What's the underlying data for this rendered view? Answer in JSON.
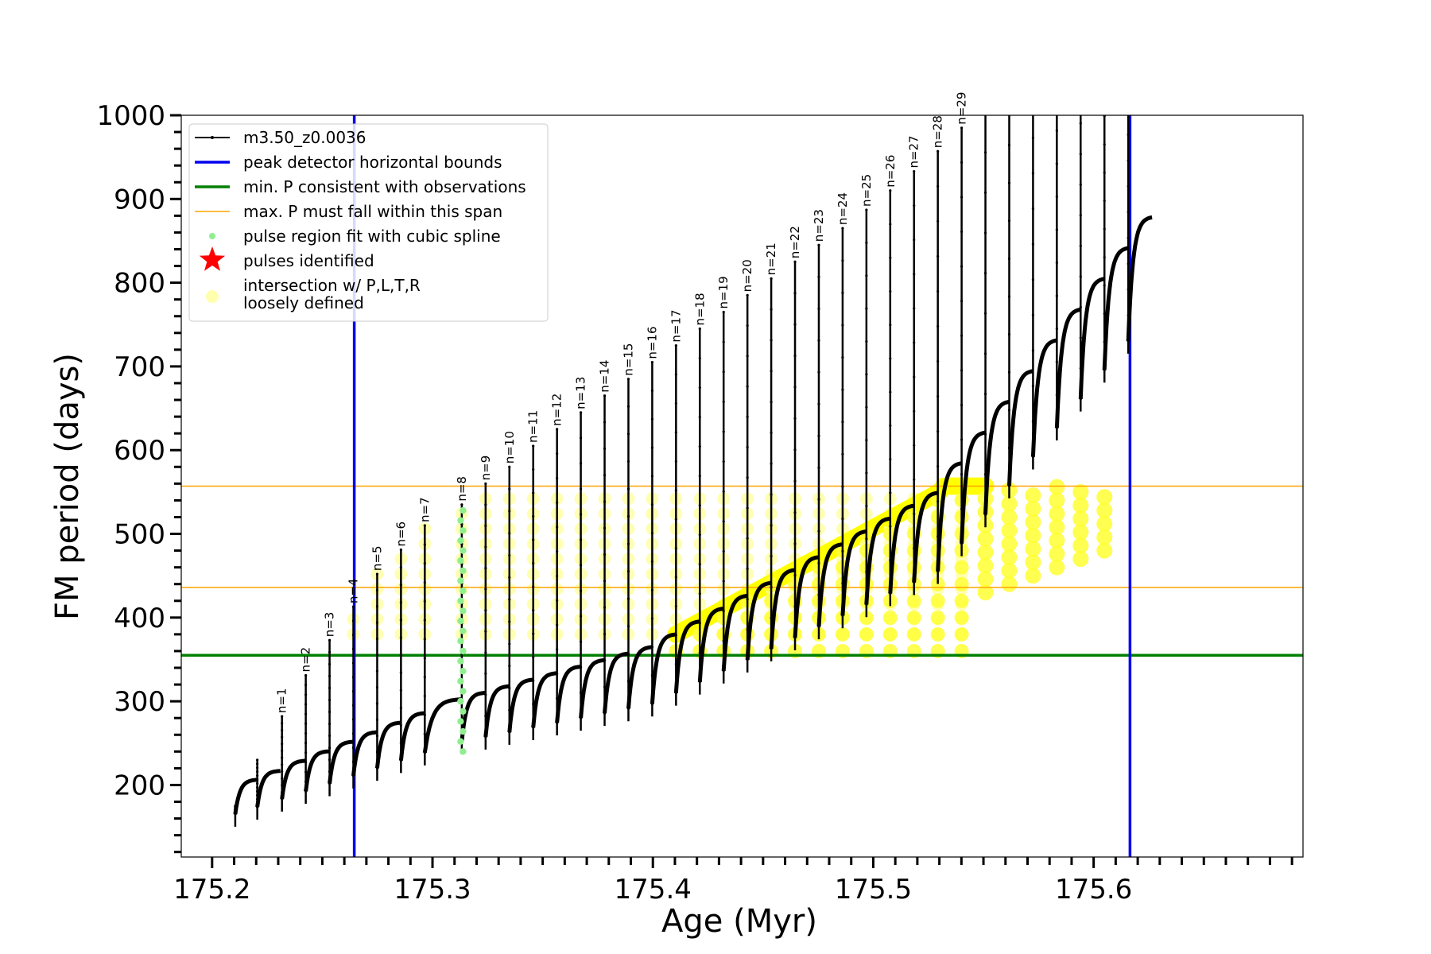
{
  "chart_data": {
    "type": "line",
    "xlabel": "Age (Myr)",
    "ylabel": "FM period (days)",
    "xlim": [
      175.186,
      175.695
    ],
    "ylim": [
      114,
      1000
    ],
    "xticks": [
      175.2,
      175.3,
      175.4,
      175.5,
      175.6
    ],
    "xtick_labels": [
      "175.2",
      "175.3",
      "175.4",
      "175.5",
      "175.6"
    ],
    "yticks": [
      200,
      300,
      400,
      500,
      600,
      700,
      800,
      900,
      1000
    ],
    "ytick_labels": [
      "200",
      "300",
      "400",
      "500",
      "600",
      "700",
      "800",
      "900",
      "1000"
    ],
    "minor_ticks": true,
    "grid": false,
    "legend_position": "upper-left",
    "legend": [
      {
        "label": "m3.50_z0.0036",
        "marker": "black-line-dots"
      },
      {
        "label": "peak detector horizontal bounds",
        "marker": "blue-line"
      },
      {
        "label": "min. P consistent with observations",
        "marker": "green-line"
      },
      {
        "label": "max. P must fall within this span",
        "marker": "orange-line"
      },
      {
        "label": "pulse region fit with cubic spline",
        "marker": "lightgreen-dot"
      },
      {
        "label": "pulses identified",
        "marker": "red-star"
      },
      {
        "label": "intersection w/ P,L,T,R",
        "label2": "loosely defined",
        "marker": "yellow-circle"
      }
    ],
    "vertical_lines": [
      {
        "x": 175.2645,
        "color": "#0000ee",
        "role": "peak detector horizontal bounds"
      },
      {
        "x": 175.6165,
        "color": "#0000ee",
        "role": "peak detector horizontal bounds"
      }
    ],
    "horizontal_lines": [
      {
        "y": 355,
        "color": "#008000",
        "role": "min. P consistent with observations"
      },
      {
        "y": 436,
        "color": "#ffa500",
        "role": "max. P span lower"
      },
      {
        "y": 557,
        "color": "#ffa500",
        "role": "max. P span upper"
      }
    ],
    "pulses": [
      {
        "n": "n=1",
        "age": 175.2317,
        "peak": 282
      },
      {
        "n": "n=2",
        "age": 175.2425,
        "peak": 331
      },
      {
        "n": "n=3",
        "age": 175.2533,
        "peak": 373
      },
      {
        "n": "n=4",
        "age": 175.2641,
        "peak": 413
      },
      {
        "n": "n=5",
        "age": 175.2749,
        "peak": 452
      },
      {
        "n": "n=6",
        "age": 175.2857,
        "peak": 481
      },
      {
        "n": "n=7",
        "age": 175.2965,
        "peak": 510
      },
      {
        "n": "n=8",
        "age": 175.3133,
        "peak": 535
      },
      {
        "n": "n=9",
        "age": 175.3241,
        "peak": 560
      },
      {
        "n": "n=10",
        "age": 175.3349,
        "peak": 580
      },
      {
        "n": "n=11",
        "age": 175.3457,
        "peak": 605
      },
      {
        "n": "n=12",
        "age": 175.3565,
        "peak": 625
      },
      {
        "n": "n=13",
        "age": 175.3673,
        "peak": 645
      },
      {
        "n": "n=14",
        "age": 175.3781,
        "peak": 665
      },
      {
        "n": "n=15",
        "age": 175.3889,
        "peak": 685
      },
      {
        "n": "n=16",
        "age": 175.3997,
        "peak": 705
      },
      {
        "n": "n=17",
        "age": 175.4105,
        "peak": 725
      },
      {
        "n": "n=18",
        "age": 175.4213,
        "peak": 745
      },
      {
        "n": "n=19",
        "age": 175.4321,
        "peak": 765
      },
      {
        "n": "n=20",
        "age": 175.4429,
        "peak": 785
      },
      {
        "n": "n=21",
        "age": 175.4537,
        "peak": 805
      },
      {
        "n": "n=22",
        "age": 175.4645,
        "peak": 825
      },
      {
        "n": "n=23",
        "age": 175.4753,
        "peak": 845
      },
      {
        "n": "n=24",
        "age": 175.4861,
        "peak": 865
      },
      {
        "n": "n=25",
        "age": 175.4969,
        "peak": 887
      },
      {
        "n": "n=26",
        "age": 175.5077,
        "peak": 910
      },
      {
        "n": "n=27",
        "age": 175.5185,
        "peak": 933
      },
      {
        "n": "n=28",
        "age": 175.5293,
        "peak": 957
      },
      {
        "n": "n=29",
        "age": 175.5401,
        "peak": 985
      }
    ]
  }
}
